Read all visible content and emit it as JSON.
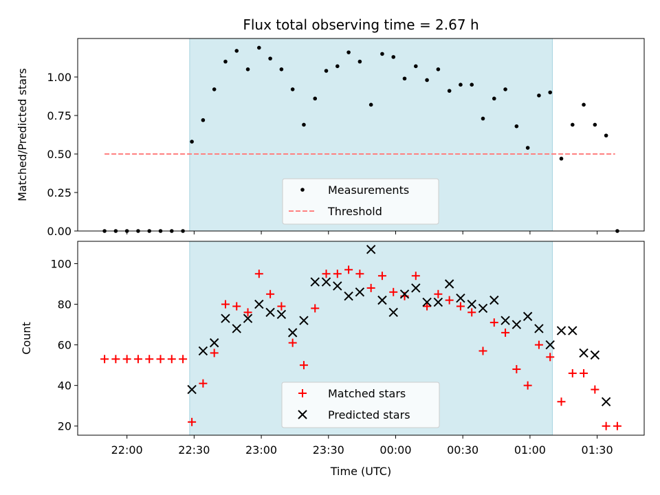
{
  "chart_data": [
    {
      "type": "scatter",
      "title": "Flux total observing time = 2.67 h",
      "ylabel": "Matched/Predicted stars",
      "ylim": [
        0,
        1.25
      ],
      "yticks": [
        "0.00",
        "0.25",
        "0.50",
        "0.75",
        "1.00"
      ],
      "shaded_x_range": [
        "22:28",
        "01:10"
      ],
      "legend": {
        "placement": "lower-center",
        "entries": [
          "Measurements",
          "Threshold"
        ]
      },
      "threshold": {
        "value": 0.5,
        "x_start": "21:50",
        "x_end": "01:38",
        "color": "#ff8080"
      },
      "series": [
        {
          "name": "Measurements",
          "color": "#000000",
          "points": [
            [
              "21:50",
              0.0
            ],
            [
              "21:55",
              0.0
            ],
            [
              "22:00",
              0.0
            ],
            [
              "22:05",
              0.0
            ],
            [
              "22:10",
              0.0
            ],
            [
              "22:15",
              0.0
            ],
            [
              "22:20",
              0.0
            ],
            [
              "22:25",
              0.0
            ],
            [
              "22:29",
              0.58
            ],
            [
              "22:34",
              0.72
            ],
            [
              "22:39",
              0.92
            ],
            [
              "22:44",
              1.1
            ],
            [
              "22:49",
              1.17
            ],
            [
              "22:54",
              1.05
            ],
            [
              "22:59",
              1.19
            ],
            [
              "23:04",
              1.12
            ],
            [
              "23:09",
              1.05
            ],
            [
              "23:14",
              0.92
            ],
            [
              "23:19",
              0.69
            ],
            [
              "23:24",
              0.86
            ],
            [
              "23:29",
              1.04
            ],
            [
              "23:34",
              1.07
            ],
            [
              "23:39",
              1.16
            ],
            [
              "23:44",
              1.1
            ],
            [
              "23:49",
              0.82
            ],
            [
              "23:54",
              1.15
            ],
            [
              "23:59",
              1.13
            ],
            [
              "00:04",
              0.99
            ],
            [
              "00:09",
              1.07
            ],
            [
              "00:14",
              0.98
            ],
            [
              "00:19",
              1.05
            ],
            [
              "00:24",
              0.91
            ],
            [
              "00:29",
              0.95
            ],
            [
              "00:34",
              0.95
            ],
            [
              "00:39",
              0.73
            ],
            [
              "00:44",
              0.86
            ],
            [
              "00:49",
              0.92
            ],
            [
              "00:54",
              0.68
            ],
            [
              "00:59",
              0.54
            ],
            [
              "01:04",
              0.88
            ],
            [
              "01:09",
              0.9
            ],
            [
              "01:14",
              0.47
            ],
            [
              "01:19",
              0.69
            ],
            [
              "01:24",
              0.82
            ],
            [
              "01:29",
              0.69
            ],
            [
              "01:34",
              0.62
            ],
            [
              "01:39",
              0.0
            ]
          ]
        }
      ]
    },
    {
      "type": "scatter",
      "xlabel": "Time (UTC)",
      "ylabel": "Count",
      "ylim": [
        15.5,
        111
      ],
      "yticks": [
        "20",
        "40",
        "60",
        "80",
        "100"
      ],
      "xticks": [
        "22:00",
        "22:30",
        "23:00",
        "23:30",
        "00:00",
        "00:30",
        "01:00",
        "01:30"
      ],
      "shaded_x_range": [
        "22:28",
        "01:10"
      ],
      "legend": {
        "placement": "lower-center",
        "entries": [
          "Matched stars",
          "Predicted stars"
        ]
      },
      "series": [
        {
          "name": "Matched stars",
          "marker": "plus",
          "color": "#ff0000",
          "points": [
            [
              "21:50",
              53
            ],
            [
              "21:55",
              53
            ],
            [
              "22:00",
              53
            ],
            [
              "22:05",
              53
            ],
            [
              "22:10",
              53
            ],
            [
              "22:15",
              53
            ],
            [
              "22:20",
              53
            ],
            [
              "22:25",
              53
            ],
            [
              "22:29",
              22
            ],
            [
              "22:34",
              41
            ],
            [
              "22:39",
              56
            ],
            [
              "22:44",
              80
            ],
            [
              "22:49",
              79
            ],
            [
              "22:54",
              76
            ],
            [
              "22:59",
              95
            ],
            [
              "23:04",
              85
            ],
            [
              "23:09",
              79
            ],
            [
              "23:14",
              61
            ],
            [
              "23:19",
              50
            ],
            [
              "23:24",
              78
            ],
            [
              "23:29",
              95
            ],
            [
              "23:34",
              95
            ],
            [
              "23:39",
              97
            ],
            [
              "23:44",
              95
            ],
            [
              "23:49",
              88
            ],
            [
              "23:54",
              94
            ],
            [
              "23:59",
              86
            ],
            [
              "00:04",
              84
            ],
            [
              "00:09",
              94
            ],
            [
              "00:14",
              79
            ],
            [
              "00:19",
              85
            ],
            [
              "00:24",
              82
            ],
            [
              "00:29",
              79
            ],
            [
              "00:34",
              76
            ],
            [
              "00:39",
              57
            ],
            [
              "00:44",
              71
            ],
            [
              "00:49",
              66
            ],
            [
              "00:54",
              48
            ],
            [
              "00:59",
              40
            ],
            [
              "01:04",
              60
            ],
            [
              "01:09",
              54
            ],
            [
              "01:14",
              32
            ],
            [
              "01:19",
              46
            ],
            [
              "01:24",
              46
            ],
            [
              "01:29",
              38
            ],
            [
              "01:34",
              20
            ],
            [
              "01:39",
              20
            ]
          ]
        },
        {
          "name": "Predicted stars",
          "marker": "x",
          "color": "#000000",
          "points": [
            [
              "22:29",
              38
            ],
            [
              "22:34",
              57
            ],
            [
              "22:39",
              61
            ],
            [
              "22:44",
              73
            ],
            [
              "22:49",
              68
            ],
            [
              "22:54",
              73
            ],
            [
              "22:59",
              80
            ],
            [
              "23:04",
              76
            ],
            [
              "23:09",
              75
            ],
            [
              "23:14",
              66
            ],
            [
              "23:19",
              72
            ],
            [
              "23:24",
              91
            ],
            [
              "23:29",
              91
            ],
            [
              "23:34",
              89
            ],
            [
              "23:39",
              84
            ],
            [
              "23:44",
              86
            ],
            [
              "23:49",
              107
            ],
            [
              "23:54",
              82
            ],
            [
              "23:59",
              76
            ],
            [
              "00:04",
              85
            ],
            [
              "00:09",
              88
            ],
            [
              "00:14",
              81
            ],
            [
              "00:19",
              81
            ],
            [
              "00:24",
              90
            ],
            [
              "00:29",
              83
            ],
            [
              "00:34",
              80
            ],
            [
              "00:39",
              78
            ],
            [
              "00:44",
              82
            ],
            [
              "00:49",
              72
            ],
            [
              "00:54",
              70
            ],
            [
              "00:59",
              74
            ],
            [
              "01:04",
              68
            ],
            [
              "01:09",
              60
            ],
            [
              "01:14",
              67
            ],
            [
              "01:19",
              67
            ],
            [
              "01:24",
              56
            ],
            [
              "01:29",
              55
            ],
            [
              "01:34",
              32
            ]
          ]
        }
      ]
    }
  ],
  "colors": {
    "shade": "#d4ebf1",
    "axes": "#000000"
  }
}
